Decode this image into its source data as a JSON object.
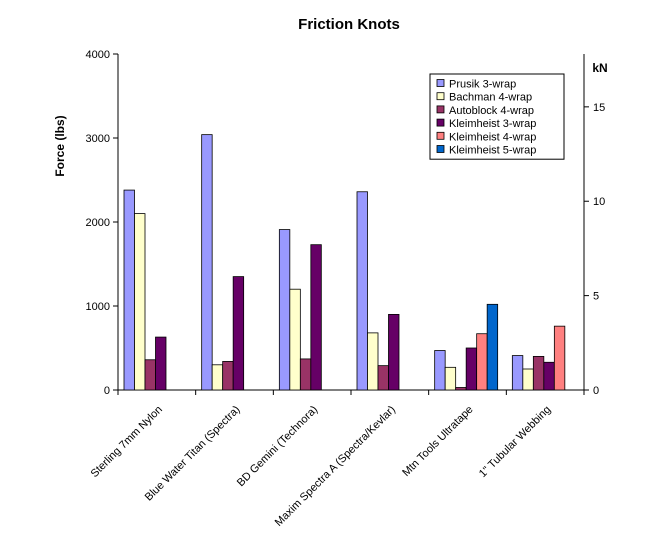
{
  "chart_data": {
    "type": "bar",
    "title": "Friction Knots",
    "ylabel": "Force (lbs)",
    "y2label": "kN",
    "ylim": [
      0,
      4000
    ],
    "yticks": [
      0,
      1000,
      2000,
      3000,
      4000
    ],
    "y2lim": [
      0,
      17.8
    ],
    "y2ticks": [
      0,
      5,
      10,
      15
    ],
    "categories": [
      "Sterling 7mm Nylon",
      "Blue Water Titan (Spectra)",
      "BD Gemini (Technora)",
      "Maxim Spectra A (Spectra/Kevlar)",
      "Mtn Tools Ultratape",
      "1\" Tubular Webbing"
    ],
    "series": [
      {
        "name": "Prusik 3-wrap",
        "color": "#9999ff",
        "values": [
          2380,
          3040,
          1910,
          2360,
          470,
          410
        ]
      },
      {
        "name": "Bachman 4-wrap",
        "color": "#ffffcc",
        "values": [
          2100,
          300,
          1200,
          680,
          270,
          250
        ]
      },
      {
        "name": "Autoblock 4-wrap",
        "color": "#993366",
        "values": [
          360,
          340,
          370,
          290,
          30,
          400
        ]
      },
      {
        "name": "Kleimheist 3-wrap",
        "color": "#660066",
        "values": [
          630,
          1350,
          1730,
          900,
          500,
          330
        ]
      },
      {
        "name": "Kleimheist 4-wrap",
        "color": "#ff8080",
        "values": [
          null,
          null,
          null,
          null,
          670,
          760
        ]
      },
      {
        "name": "Kleimheist 5-wrap",
        "color": "#0066cc",
        "values": [
          null,
          null,
          null,
          null,
          1020,
          null
        ]
      }
    ],
    "legend_position": "top-right",
    "grid": false
  }
}
